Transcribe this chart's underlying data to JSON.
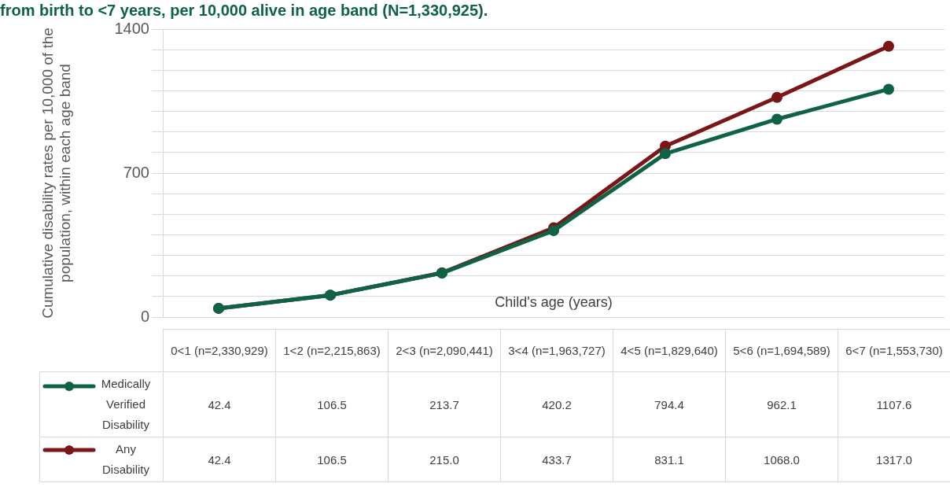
{
  "chart_data": {
    "type": "line",
    "title": "from birth to <7 years, per 10,000 alive in age band (N=1,330,925).",
    "xlabel": "Child's age (years)",
    "ylabel": "Cumulative disability rates per 10,000 of the population, within each age band",
    "categories": [
      "0<1 (n=2,330,929)",
      "1<2 (n=2,215,863)",
      "2<3 (n=2,090,441)",
      "3<4 (n=1,963,727)",
      "4<5 (n=1,829,640)",
      "5<6 (n=1,694,589)",
      "6<7 (n=1,553,730)"
    ],
    "series": [
      {
        "name": "Medically Verified Disability",
        "color": "#0e6345",
        "values": [
          42.4,
          106.5,
          213.7,
          420.2,
          794.4,
          962.1,
          1107.6
        ],
        "value_labels": [
          "42.4",
          "106.5",
          "213.7",
          "420.2",
          "794.4",
          "962.1",
          "1107.6"
        ]
      },
      {
        "name": "Any Disability",
        "color": "#7a1518",
        "values": [
          42.4,
          106.5,
          215.0,
          433.7,
          831.1,
          1068.0,
          1317.0
        ],
        "value_labels": [
          "42.4",
          "106.5",
          "215.0",
          "433.7",
          "831.1",
          "1068.0",
          "1317.0"
        ]
      }
    ],
    "ylim": [
      0,
      1400
    ],
    "yticks": [
      0,
      {
        "value": 100,
        "label": null
      },
      {
        "value": 200,
        "label": null
      },
      {
        "value": 300,
        "label": null
      },
      {
        "value": 400,
        "label": null
      },
      {
        "value": 500,
        "label": null
      },
      {
        "value": 600,
        "label": null
      },
      700,
      {
        "value": 800,
        "label": null
      },
      {
        "value": 900,
        "label": null
      },
      {
        "value": 1000,
        "label": null
      },
      {
        "value": 1100,
        "label": null
      },
      {
        "value": 1200,
        "label": null
      },
      {
        "value": 1300,
        "label": null
      },
      1400
    ],
    "grid": "y",
    "legend": "bottom",
    "marker": "circle",
    "line_style": "solid"
  }
}
